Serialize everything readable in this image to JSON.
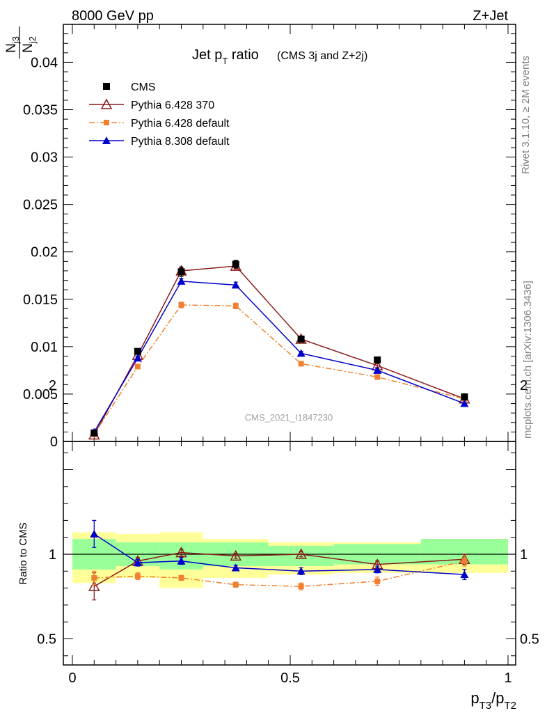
{
  "header": {
    "left_label": "8000 GeV pp",
    "right_label": "Z+Jet"
  },
  "side_labels": {
    "generator": "Rivet 3.1.10, ≥ 2M events",
    "source": "mcplots.cern.ch [arXiv:1306.3436]"
  },
  "chart_data": [
    {
      "type": "line",
      "title": "Jet p_T ratio",
      "title_main": "Jet p",
      "title_sub": "T",
      "title_rest": " ratio",
      "subtitle": "(CMS 3j and Z+2j)",
      "ylabel_num": "N",
      "ylabel_num_sub": "j3",
      "ylabel_den": "N",
      "ylabel_den_sub": "j2",
      "annotation": "CMS_2021_I1847230",
      "xlim": [
        0,
        1
      ],
      "ylim": [
        0,
        0.044
      ],
      "y_ticks": [
        0,
        0.005,
        0.01,
        0.015,
        0.02,
        0.025,
        0.03,
        0.035,
        0.04
      ],
      "y_tick_labels": [
        "0",
        "0.005",
        "0.01",
        "0.015",
        "0.02",
        "0.025",
        "0.03",
        "0.035",
        "0.04"
      ],
      "x": [
        0.05,
        0.15,
        0.25,
        0.375,
        0.525,
        0.7,
        0.9
      ],
      "series": [
        {
          "name": "CMS",
          "color": "#000000",
          "marker": "square",
          "values": [
            0.0009,
            0.0095,
            0.0179,
            0.0187,
            0.0108,
            0.0086,
            0.0047
          ],
          "errors": [
            0.0001,
            0.0003,
            0.0005,
            0.0004,
            0.0003,
            0.0002,
            0.0002
          ]
        },
        {
          "name": "Pythia 6.428 370",
          "color": "#8b1a1a",
          "marker": "triangle-open",
          "values": [
            0.0007,
            0.0091,
            0.018,
            0.0185,
            0.0108,
            0.008,
            0.0045
          ],
          "errors": [
            0.0001,
            0.0002,
            0.0003,
            0.0003,
            0.0002,
            0.0002,
            0.0001
          ]
        },
        {
          "name": "Pythia 6.428 default",
          "color": "#f08030",
          "marker": "square-small",
          "dashed": true,
          "values": [
            0.00075,
            0.0079,
            0.0144,
            0.0143,
            0.0082,
            0.0068,
            0.0045
          ],
          "errors": [
            0.0001,
            0.0002,
            0.0003,
            0.0003,
            0.0002,
            0.0002,
            0.0001
          ]
        },
        {
          "name": "Pythia 8.308 default",
          "color": "#0000cc",
          "marker": "triangle",
          "values": [
            0.001,
            0.0088,
            0.0169,
            0.0165,
            0.0093,
            0.0075,
            0.004
          ],
          "errors": [
            0.0001,
            0.0002,
            0.0003,
            0.0003,
            0.0002,
            0.0002,
            0.0001
          ]
        }
      ]
    },
    {
      "type": "line",
      "ylabel": "Ratio to CMS",
      "xlabel_main": "p",
      "xlabel_sub1": "T3",
      "xlabel_mid": "/p",
      "xlabel_sub2": "T2",
      "xlim": [
        0,
        1
      ],
      "ylim": [
        0.35,
        2.3
      ],
      "x_ticks": [
        0,
        0.5,
        1
      ],
      "x_tick_labels": [
        "0",
        "0.5",
        "1"
      ],
      "y_ticks": [
        0.5,
        1,
        2
      ],
      "y_tick_labels": [
        "0.5",
        "1",
        "2"
      ],
      "bins": [
        [
          0,
          0.1
        ],
        [
          0.1,
          0.2
        ],
        [
          0.2,
          0.3
        ],
        [
          0.3,
          0.45
        ],
        [
          0.45,
          0.6
        ],
        [
          0.6,
          0.8
        ],
        [
          0.8,
          1.0
        ]
      ],
      "band_stat": [
        [
          0.91,
          1.09
        ],
        [
          0.93,
          1.07
        ],
        [
          0.91,
          1.07
        ],
        [
          0.93,
          1.07
        ],
        [
          0.93,
          1.05
        ],
        [
          0.94,
          1.06
        ],
        [
          0.94,
          1.09
        ]
      ],
      "band_total": [
        [
          0.83,
          1.13
        ],
        [
          0.86,
          1.12
        ],
        [
          0.8,
          1.13
        ],
        [
          0.86,
          1.09
        ],
        [
          0.88,
          1.07
        ],
        [
          0.89,
          1.07
        ],
        [
          0.89,
          1.09
        ]
      ],
      "band_stat_color": "#99ff99",
      "band_total_color": "#ffff99",
      "x": [
        0.05,
        0.15,
        0.25,
        0.375,
        0.525,
        0.7,
        0.9
      ],
      "series": [
        {
          "name": "Pythia 6.428 370",
          "color": "#8b1a1a",
          "marker": "triangle-open",
          "values": [
            0.81,
            0.96,
            1.01,
            0.99,
            1.0,
            0.94,
            0.97
          ],
          "errors": [
            0.08,
            0.02,
            0.02,
            0.015,
            0.015,
            0.02,
            0.03
          ]
        },
        {
          "name": "Pythia 6.428 default",
          "color": "#f08030",
          "marker": "square-small",
          "dashed": true,
          "values": [
            0.86,
            0.87,
            0.86,
            0.82,
            0.81,
            0.84,
            0.96
          ],
          "errors": [
            0.04,
            0.02,
            0.015,
            0.015,
            0.02,
            0.025,
            0.03
          ]
        },
        {
          "name": "Pythia 8.308 default",
          "color": "#0000cc",
          "marker": "triangle",
          "values": [
            1.12,
            0.95,
            0.96,
            0.92,
            0.9,
            0.91,
            0.88
          ],
          "errors": [
            0.08,
            0.02,
            0.02,
            0.015,
            0.02,
            0.02,
            0.03
          ]
        }
      ]
    }
  ]
}
